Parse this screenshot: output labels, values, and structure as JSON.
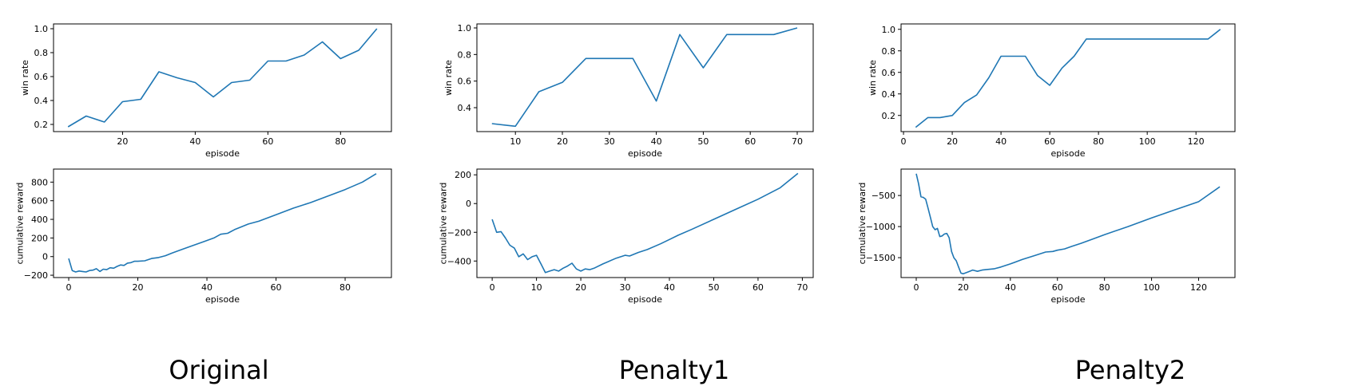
{
  "captions": [
    "Original",
    "Penalty1",
    "Penalty2"
  ],
  "style": {
    "line_color": "#1f77b4",
    "axis_color": "#000000"
  },
  "chart_data": [
    {
      "type": "line",
      "panel": "Original",
      "row": "top",
      "xlabel": "episode",
      "ylabel": "win rate",
      "xlim": [
        1,
        94
      ],
      "ylim": [
        0.14,
        1.04
      ],
      "xticks": [
        20,
        40,
        60,
        80
      ],
      "yticks": [
        0.2,
        0.4,
        0.6,
        0.8,
        1.0
      ],
      "xtick_labels": [
        "20",
        "40",
        "60",
        "80"
      ],
      "ytick_labels": [
        "0.2",
        "0.4",
        "0.6",
        "0.8",
        "1.0"
      ],
      "series": [
        {
          "x": [
            5,
            10,
            15,
            20,
            25,
            30,
            35,
            40,
            45,
            50,
            55,
            60,
            65,
            70,
            75,
            80,
            85,
            90
          ],
          "y": [
            0.18,
            0.27,
            0.22,
            0.39,
            0.41,
            0.64,
            0.59,
            0.55,
            0.43,
            0.55,
            0.57,
            0.73,
            0.73,
            0.78,
            0.89,
            0.75,
            0.82,
            1.0
          ]
        }
      ]
    },
    {
      "type": "line",
      "panel": "Penalty1",
      "row": "top",
      "xlabel": "episode",
      "ylabel": "win rate",
      "xlim": [
        1.8,
        73.4
      ],
      "ylim": [
        0.22,
        1.03
      ],
      "xticks": [
        10,
        20,
        30,
        40,
        50,
        60,
        70
      ],
      "yticks": [
        0.4,
        0.6,
        0.8,
        1.0
      ],
      "xtick_labels": [
        "10",
        "20",
        "30",
        "40",
        "50",
        "60",
        "70"
      ],
      "ytick_labels": [
        "0.4",
        "0.6",
        "0.8",
        "1.0"
      ],
      "series": [
        {
          "x": [
            5,
            10,
            15,
            20,
            25,
            30,
            35,
            40,
            45,
            50,
            55,
            60,
            65,
            70
          ],
          "y": [
            0.28,
            0.26,
            0.52,
            0.59,
            0.77,
            0.77,
            0.77,
            0.45,
            0.95,
            0.7,
            0.95,
            0.95,
            0.95,
            1.0
          ]
        }
      ]
    },
    {
      "type": "line",
      "panel": "Penalty2",
      "row": "top",
      "xlabel": "episode",
      "ylabel": "win rate",
      "xlim": [
        -1,
        136
      ],
      "ylim": [
        0.05,
        1.05
      ],
      "xticks": [
        0,
        20,
        40,
        60,
        80,
        100,
        120
      ],
      "yticks": [
        0.2,
        0.4,
        0.6,
        0.8,
        1.0
      ],
      "xtick_labels": [
        "0",
        "20",
        "40",
        "60",
        "80",
        "100",
        "120"
      ],
      "ytick_labels": [
        "0.2",
        "0.4",
        "0.6",
        "0.8",
        "1.0"
      ],
      "series": [
        {
          "x": [
            5,
            10,
            15,
            20,
            25,
            30,
            35,
            40,
            45,
            50,
            55,
            60,
            65,
            70,
            75,
            80,
            85,
            90,
            95,
            100,
            105,
            110,
            115,
            120,
            125,
            130
          ],
          "y": [
            0.09,
            0.18,
            0.18,
            0.2,
            0.32,
            0.39,
            0.55,
            0.75,
            0.75,
            0.75,
            0.57,
            0.48,
            0.64,
            0.75,
            0.91,
            0.91,
            0.91,
            0.91,
            0.91,
            0.91,
            0.91,
            0.91,
            0.91,
            0.91,
            0.91,
            1.0
          ]
        }
      ]
    },
    {
      "type": "line",
      "panel": "Original",
      "row": "bottom",
      "xlabel": "episode",
      "ylabel": "cumulative reward",
      "xlim": [
        -4.4,
        93.4
      ],
      "ylim": [
        -225,
        940
      ],
      "xticks": [
        0,
        20,
        40,
        60,
        80
      ],
      "yticks": [
        -200,
        0,
        200,
        400,
        600,
        800
      ],
      "xtick_labels": [
        "0",
        "20",
        "40",
        "60",
        "80"
      ],
      "ytick_labels": [
        "−200",
        "0",
        "200",
        "400",
        "600",
        "800"
      ],
      "series": [
        {
          "x": [
            0,
            1,
            2,
            3,
            4,
            5,
            6,
            7,
            8,
            9,
            10,
            11,
            12,
            13,
            14,
            15,
            16,
            17,
            18,
            19,
            20,
            22,
            24,
            26,
            28,
            30,
            33,
            36,
            39,
            42,
            44,
            46,
            48,
            50,
            52,
            55,
            60,
            65,
            70,
            75,
            80,
            85,
            89
          ],
          "y": [
            -20,
            -150,
            -165,
            -155,
            -160,
            -165,
            -150,
            -145,
            -130,
            -160,
            -135,
            -140,
            -120,
            -125,
            -105,
            -90,
            -95,
            -70,
            -65,
            -50,
            -50,
            -45,
            -20,
            -10,
            10,
            40,
            80,
            120,
            160,
            200,
            240,
            250,
            290,
            320,
            350,
            380,
            450,
            520,
            580,
            650,
            720,
            800,
            890
          ]
        }
      ]
    },
    {
      "type": "line",
      "panel": "Penalty1",
      "row": "bottom",
      "xlabel": "episode",
      "ylabel": "cumulative reward",
      "xlim": [
        -3.45,
        72.45
      ],
      "ylim": [
        -515,
        240
      ],
      "xticks": [
        0,
        10,
        20,
        30,
        40,
        50,
        60,
        70
      ],
      "yticks": [
        -400,
        -200,
        0,
        200
      ],
      "xtick_labels": [
        "0",
        "10",
        "20",
        "30",
        "40",
        "50",
        "60",
        "70"
      ],
      "ytick_labels": [
        "−400",
        "−200",
        "0",
        "200"
      ],
      "series": [
        {
          "x": [
            0,
            1,
            2,
            3,
            4,
            5,
            6,
            7,
            8,
            9,
            10,
            11,
            12,
            13,
            14,
            15,
            16,
            17,
            18,
            19,
            20,
            21,
            22,
            23,
            25,
            28,
            30,
            31,
            33,
            35,
            38,
            40,
            42,
            45,
            50,
            55,
            60,
            65,
            69
          ],
          "y": [
            -110,
            -200,
            -195,
            -240,
            -290,
            -310,
            -370,
            -350,
            -390,
            -370,
            -360,
            -420,
            -480,
            -470,
            -460,
            -470,
            -450,
            -435,
            -415,
            -455,
            -470,
            -455,
            -460,
            -450,
            -420,
            -380,
            -360,
            -365,
            -340,
            -320,
            -280,
            -250,
            -220,
            -180,
            -110,
            -40,
            30,
            110,
            210
          ]
        }
      ]
    },
    {
      "type": "line",
      "panel": "Penalty2",
      "row": "bottom",
      "xlabel": "episode",
      "ylabel": "cumulative reward",
      "xlim": [
        -6.45,
        135.45
      ],
      "ylim": [
        -1820,
        -75
      ],
      "xticks": [
        0,
        20,
        40,
        60,
        80,
        100,
        120
      ],
      "yticks": [
        -1500,
        -1000,
        -500
      ],
      "xtick_labels": [
        "0",
        "20",
        "40",
        "60",
        "80",
        "100",
        "120"
      ],
      "ytick_labels": [
        "−1500",
        "−1000",
        "−500"
      ],
      "series": [
        {
          "x": [
            0,
            1,
            2,
            3,
            4,
            5,
            6,
            7,
            8,
            9,
            10,
            11,
            12,
            13,
            14,
            15,
            16,
            17,
            18,
            19,
            20,
            22,
            24,
            26,
            28,
            30,
            33,
            36,
            40,
            45,
            50,
            55,
            58,
            60,
            63,
            66,
            70,
            75,
            80,
            90,
            100,
            110,
            120,
            129
          ],
          "y": [
            -150,
            -310,
            -520,
            -530,
            -560,
            -700,
            -850,
            -1000,
            -1050,
            -1030,
            -1160,
            -1150,
            -1120,
            -1110,
            -1180,
            -1400,
            -1500,
            -1550,
            -1650,
            -1750,
            -1760,
            -1730,
            -1700,
            -1720,
            -1700,
            -1690,
            -1680,
            -1650,
            -1600,
            -1530,
            -1470,
            -1410,
            -1400,
            -1380,
            -1360,
            -1320,
            -1270,
            -1200,
            -1130,
            -1000,
            -860,
            -730,
            -600,
            -360
          ]
        }
      ]
    }
  ]
}
